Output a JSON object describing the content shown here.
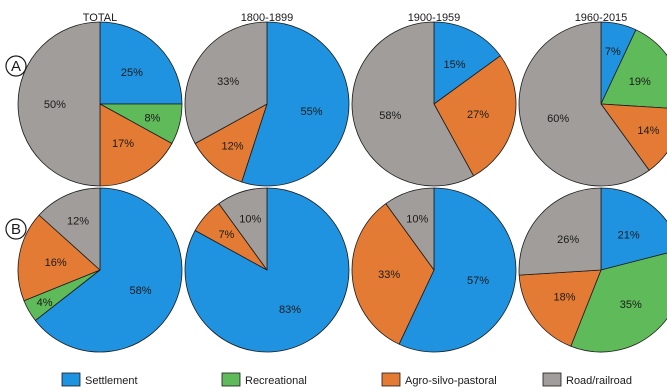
{
  "colors": {
    "Settlement": "#1f93e0",
    "Recreational": "#5fba5a",
    "Agro-silvo-pastoral": "#e47b34",
    "Road/railroad": "#a19d9a"
  },
  "column_titles": [
    "TOTAL",
    "1800-1899",
    "1900-1959",
    "1960-2015"
  ],
  "row_labels": [
    "A",
    "B"
  ],
  "legend": [
    "Settlement",
    "Recreational",
    "Agro-silvo-pastoral",
    "Road/railroad"
  ],
  "chart_data": [
    {
      "type": "pie",
      "row": "A",
      "column": "TOTAL",
      "categories": [
        "Settlement",
        "Recreational",
        "Agro-silvo-pastoral",
        "Road/railroad"
      ],
      "values": [
        25,
        8,
        17,
        50
      ],
      "labels": [
        "25%",
        "8%",
        "17%",
        "50%"
      ]
    },
    {
      "type": "pie",
      "row": "A",
      "column": "1800-1899",
      "categories": [
        "Settlement",
        "Agro-silvo-pastoral",
        "Road/railroad"
      ],
      "values": [
        55,
        12,
        33
      ],
      "labels": [
        "55%",
        "12%",
        "33%"
      ]
    },
    {
      "type": "pie",
      "row": "A",
      "column": "1900-1959",
      "categories": [
        "Settlement",
        "Agro-silvo-pastoral",
        "Road/railroad"
      ],
      "values": [
        15,
        27,
        58
      ],
      "labels": [
        "15%",
        "27%",
        "58%"
      ]
    },
    {
      "type": "pie",
      "row": "A",
      "column": "1960-2015",
      "categories": [
        "Settlement",
        "Recreational",
        "Agro-silvo-pastoral",
        "Road/railroad"
      ],
      "values": [
        7,
        19,
        14,
        60
      ],
      "labels": [
        "7%",
        "19%",
        "14%",
        "60%"
      ]
    },
    {
      "type": "pie",
      "row": "B",
      "column": "TOTAL",
      "categories": [
        "Settlement",
        "Recreational",
        "Agro-silvo-pastoral",
        "Road/railroad"
      ],
      "values": [
        58,
        4,
        16,
        12
      ],
      "labels": [
        "58%",
        "4%",
        "16%",
        "12%"
      ]
    },
    {
      "type": "pie",
      "row": "B",
      "column": "1800-1899",
      "categories": [
        "Settlement",
        "Agro-silvo-pastoral",
        "Road/railroad"
      ],
      "values": [
        83,
        7,
        10
      ],
      "labels": [
        "83%",
        "7%",
        "10%"
      ]
    },
    {
      "type": "pie",
      "row": "B",
      "column": "1900-1959",
      "categories": [
        "Settlement",
        "Agro-silvo-pastoral",
        "Road/railroad"
      ],
      "values": [
        57,
        33,
        10
      ],
      "labels": [
        "57%",
        "33%",
        "10%"
      ]
    },
    {
      "type": "pie",
      "row": "B",
      "column": "1960-2015",
      "categories": [
        "Settlement",
        "Recreational",
        "Agro-silvo-pastoral",
        "Road/railroad"
      ],
      "values": [
        21,
        35,
        18,
        26
      ],
      "labels": [
        "21%",
        "35%",
        "18%",
        "26%"
      ]
    }
  ]
}
